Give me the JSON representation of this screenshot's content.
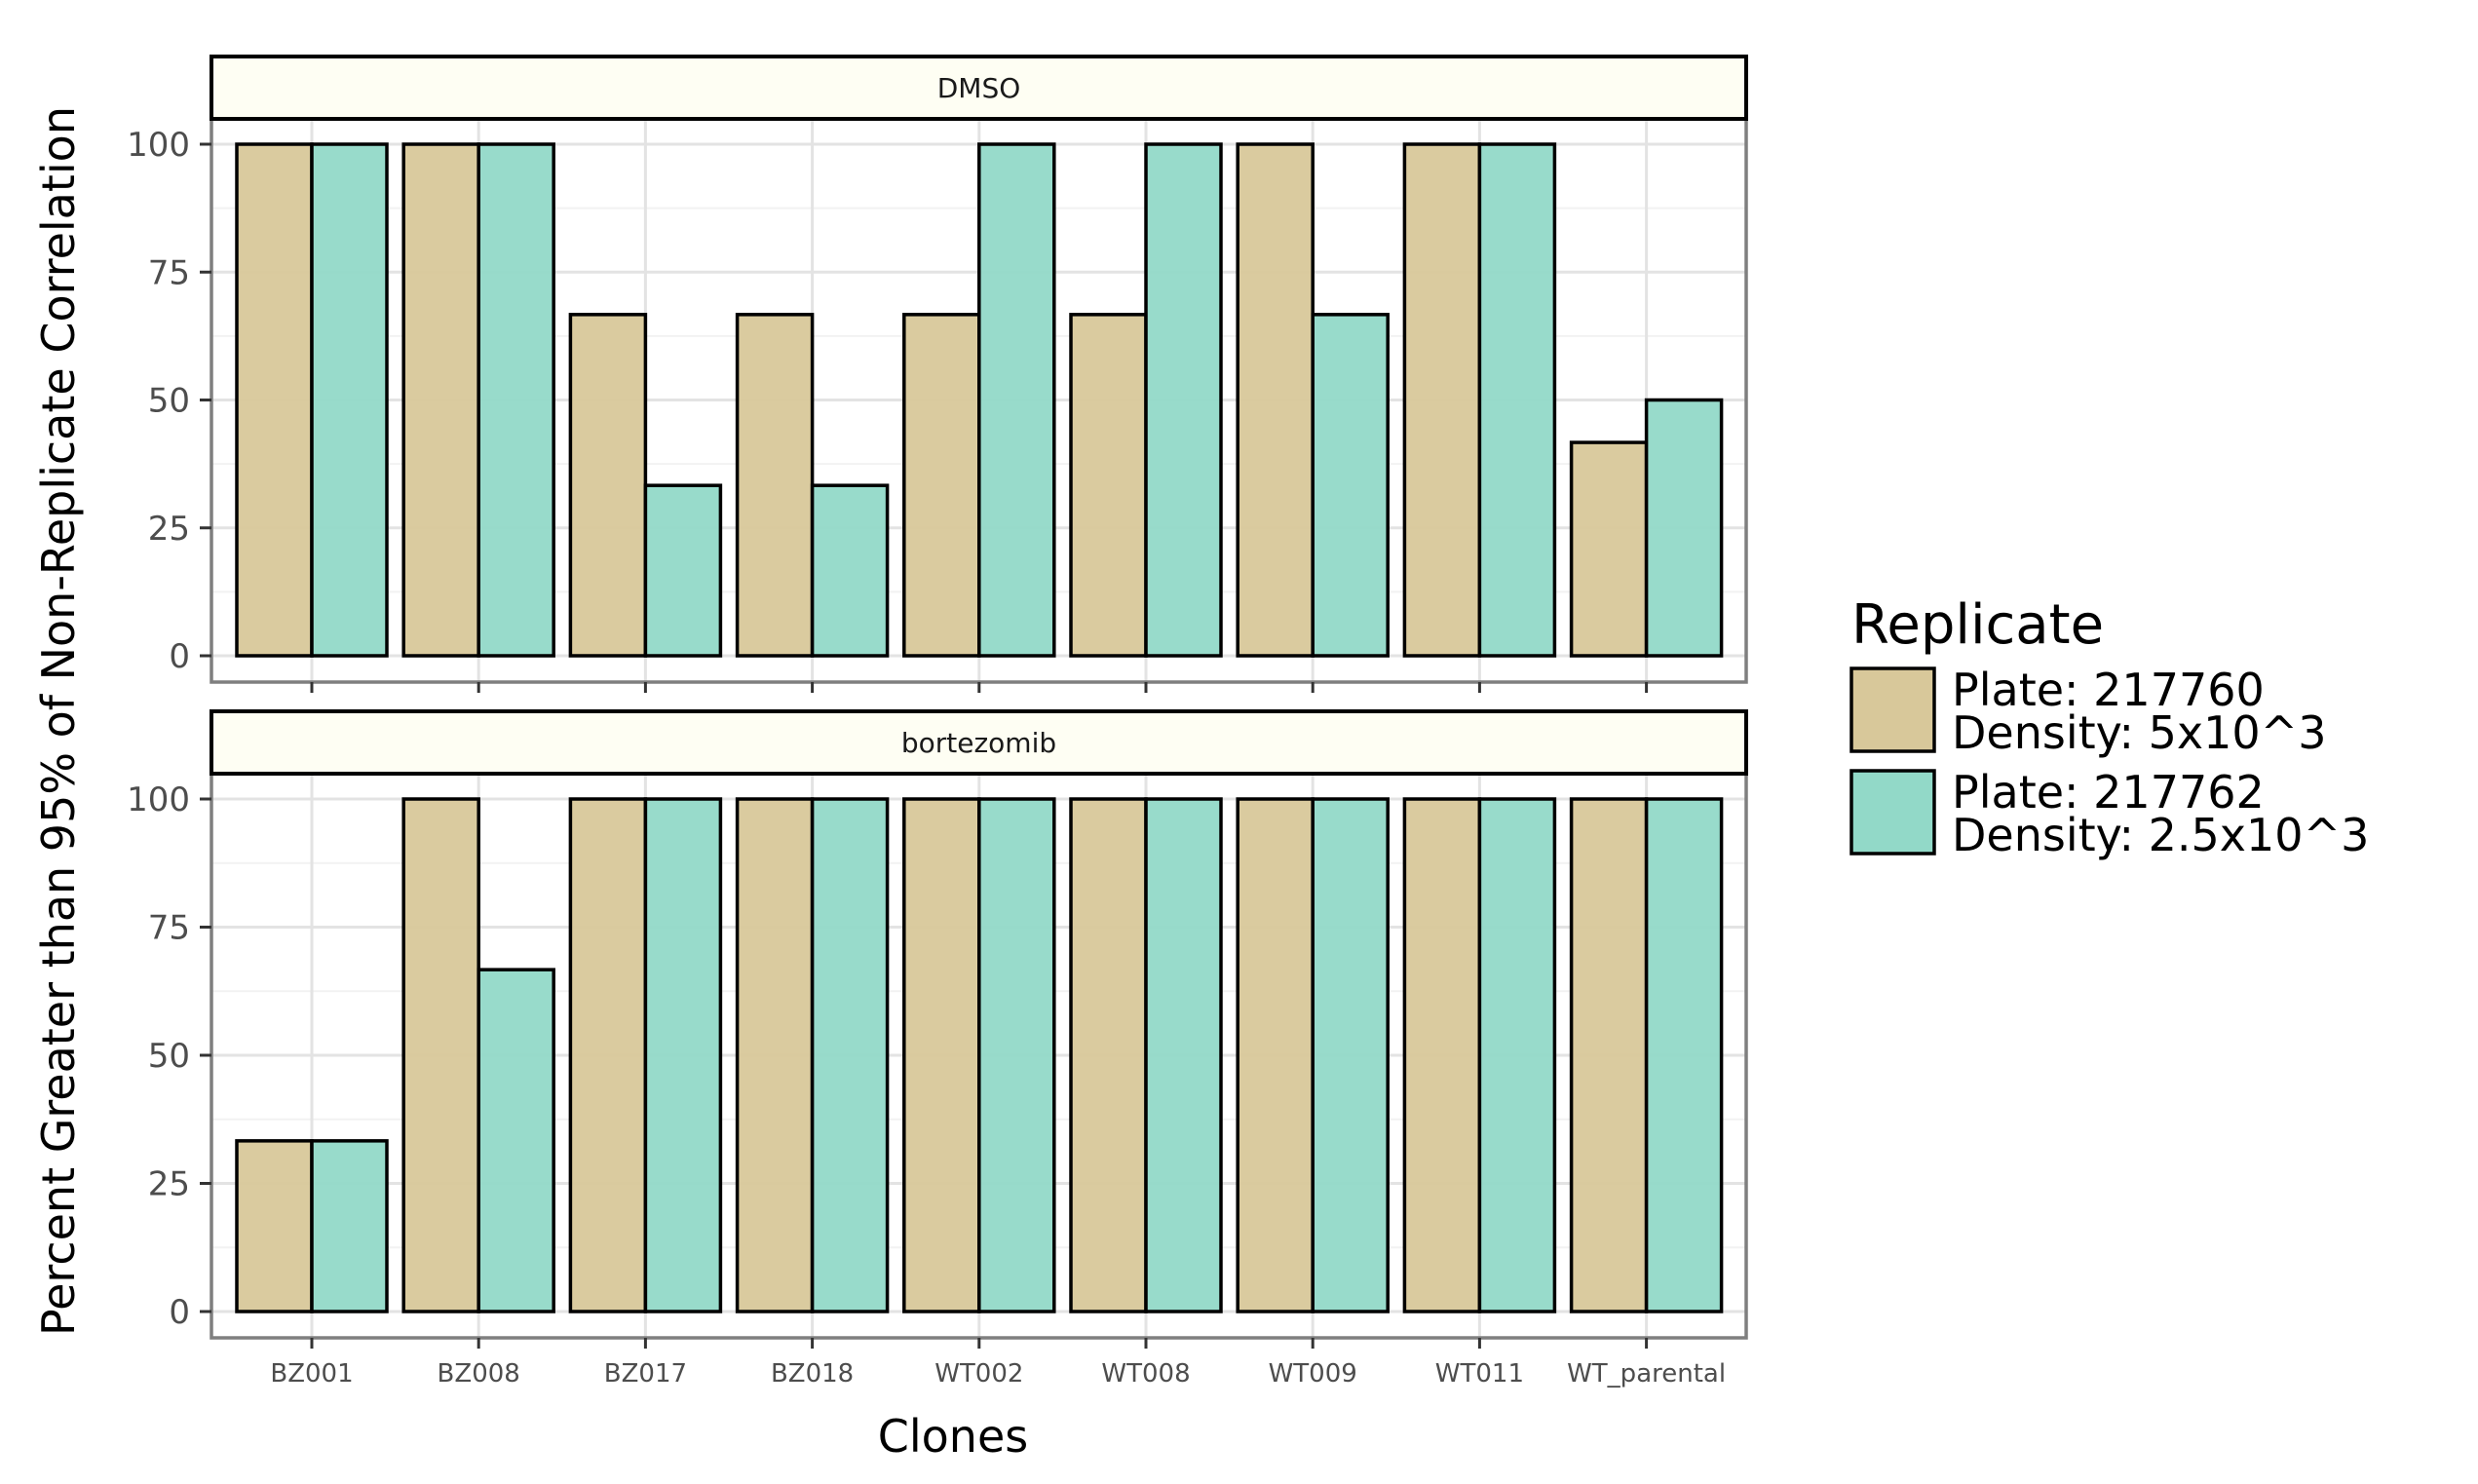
{
  "chart_data": {
    "type": "bar",
    "xlabel": "Clones",
    "ylabel": "Percent Greater than 95% of Non-Replicate Correlation",
    "ylim": [
      0,
      100
    ],
    "y_ticks": [
      0,
      25,
      50,
      75,
      100
    ],
    "grid": true,
    "legend_position": "right",
    "categories": [
      "BZ001",
      "BZ008",
      "BZ017",
      "BZ018",
      "WT002",
      "WT008",
      "WT009",
      "WT011",
      "WT_parental"
    ],
    "legend": {
      "title": "Replicate",
      "entries": [
        {
          "lines": [
            "Plate: 217760",
            "Density: 5x10^3"
          ],
          "color": "#d8c89a"
        },
        {
          "lines": [
            "Plate: 217762",
            "Density: 2.5x10^3"
          ],
          "color": "#92d9c8"
        }
      ]
    },
    "panels": [
      {
        "strip": "DMSO",
        "series": [
          {
            "values": [
              100,
              100,
              66.7,
              66.7,
              66.7,
              66.7,
              100,
              100,
              41.7
            ]
          },
          {
            "values": [
              100,
              100,
              33.3,
              33.3,
              100,
              100,
              66.7,
              100,
              50
            ]
          }
        ]
      },
      {
        "strip": "bortezomib",
        "series": [
          {
            "values": [
              33.3,
              100,
              100,
              100,
              100,
              100,
              100,
              100,
              100
            ]
          },
          {
            "values": [
              33.3,
              66.7,
              100,
              100,
              100,
              100,
              100,
              100,
              100
            ]
          }
        ]
      }
    ]
  }
}
